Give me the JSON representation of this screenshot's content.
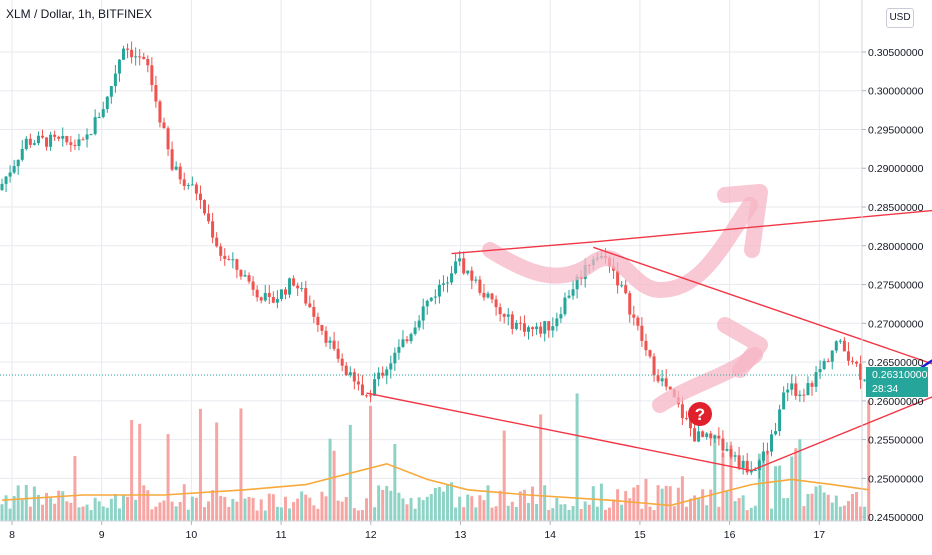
{
  "header": {
    "title": "XLM / Dollar, 1h, BITFINEX",
    "currency": "USD"
  },
  "price_tag": {
    "price": "0.26310000",
    "countdown": "28:34"
  },
  "colors": {
    "up": "#26a69a",
    "down": "#ef5350",
    "volume_up": "#8fd3c7",
    "volume_down": "#f7a5a3",
    "volume_ma": "#f7a93b",
    "drawing": "#f23645",
    "projection": "#1a1ad6",
    "arrow_fill": "#f6b6c6",
    "question_badge": "#e0202d"
  },
  "chart_data": {
    "type": "candlestick",
    "symbol": "XLM / Dollar",
    "interval": "1h",
    "exchange": "BITFINEX",
    "y_ticks": [
      "0.24500000",
      "0.25000000",
      "0.25500000",
      "0.26000000",
      "0.26500000",
      "0.27000000",
      "0.27500000",
      "0.28000000",
      "0.28500000",
      "0.29000000",
      "0.29500000",
      "0.30000000",
      "0.30500000"
    ],
    "x_ticks": [
      "8",
      "9",
      "10",
      "11",
      "12",
      "13",
      "14",
      "15",
      "16",
      "17"
    ],
    "ylim": [
      0.2445,
      0.3117
    ],
    "last_price": 0.2631,
    "close_path": [
      [
        0,
        0.288
      ],
      [
        6,
        0.2935
      ],
      [
        12,
        0.2935
      ],
      [
        20,
        0.293
      ],
      [
        26,
        0.299
      ],
      [
        30,
        0.306
      ],
      [
        36,
        0.303
      ],
      [
        42,
        0.29
      ],
      [
        48,
        0.287
      ],
      [
        54,
        0.279
      ],
      [
        60,
        0.276
      ],
      [
        66,
        0.2725
      ],
      [
        72,
        0.2755
      ],
      [
        78,
        0.2705
      ],
      [
        84,
        0.264
      ],
      [
        90,
        0.2605
      ],
      [
        92,
        0.2625
      ],
      [
        98,
        0.2665
      ],
      [
        104,
        0.272
      ],
      [
        110,
        0.276
      ],
      [
        112,
        0.2785
      ],
      [
        118,
        0.2745
      ],
      [
        124,
        0.2705
      ],
      [
        132,
        0.269
      ],
      [
        136,
        0.27
      ],
      [
        140,
        0.274
      ],
      [
        146,
        0.2788
      ],
      [
        150,
        0.278
      ],
      [
        155,
        0.272
      ],
      [
        160,
        0.265
      ],
      [
        166,
        0.26
      ],
      [
        171,
        0.2555
      ],
      [
        177,
        0.2545
      ],
      [
        182,
        0.252
      ],
      [
        185,
        0.251
      ],
      [
        189,
        0.2535
      ],
      [
        194,
        0.262
      ],
      [
        198,
        0.261
      ],
      [
        202,
        0.264
      ],
      [
        206,
        0.2675
      ],
      [
        210,
        0.2655
      ],
      [
        212,
        0.2635
      ],
      [
        214,
        0.2631
      ]
    ],
    "overlay_lines": [
      {
        "name": "line-upper-left",
        "from": [
          111,
          0.279
        ],
        "to": [
          146,
          0.2805
        ]
      },
      {
        "name": "line-upper-right",
        "from": [
          146,
          0.2805
        ],
        "to": [
          235,
          0.2848
        ]
      },
      {
        "name": "line-lower-left",
        "from": [
          90,
          0.261
        ],
        "to": [
          185,
          0.251
        ]
      },
      {
        "name": "line-lower-right",
        "from": [
          185,
          0.251
        ],
        "to": [
          271,
          0.2693
        ]
      },
      {
        "name": "line-descending",
        "from": [
          146,
          0.2798
        ],
        "to": [
          268,
          0.2579
        ]
      }
    ],
    "projection_path": [
      [
        220,
        0.2634
      ],
      [
        225,
        0.2635
      ],
      [
        230,
        0.2654
      ],
      [
        235,
        0.2664
      ],
      [
        240,
        0.269
      ],
      [
        245,
        0.2696
      ],
      [
        250,
        0.2697
      ],
      [
        253,
        0.269
      ],
      [
        257,
        0.2676
      ],
      [
        261,
        0.269
      ],
      [
        265,
        0.2707
      ],
      [
        268,
        0.2713
      ],
      [
        271,
        0.2717
      ],
      [
        274,
        0.2713
      ],
      [
        278,
        0.2728
      ],
      [
        282,
        0.275
      ]
    ],
    "volume_ma_path": [
      [
        0,
        0.04
      ],
      [
        20,
        0.05
      ],
      [
        40,
        0.05
      ],
      [
        60,
        0.06
      ],
      [
        75,
        0.07
      ],
      [
        85,
        0.09
      ],
      [
        95,
        0.11
      ],
      [
        105,
        0.08
      ],
      [
        115,
        0.06
      ],
      [
        130,
        0.05
      ],
      [
        150,
        0.04
      ],
      [
        165,
        0.03
      ],
      [
        175,
        0.05
      ],
      [
        185,
        0.07
      ],
      [
        195,
        0.08
      ],
      [
        205,
        0.07
      ],
      [
        214,
        0.06
      ]
    ],
    "question_mark": "?"
  }
}
